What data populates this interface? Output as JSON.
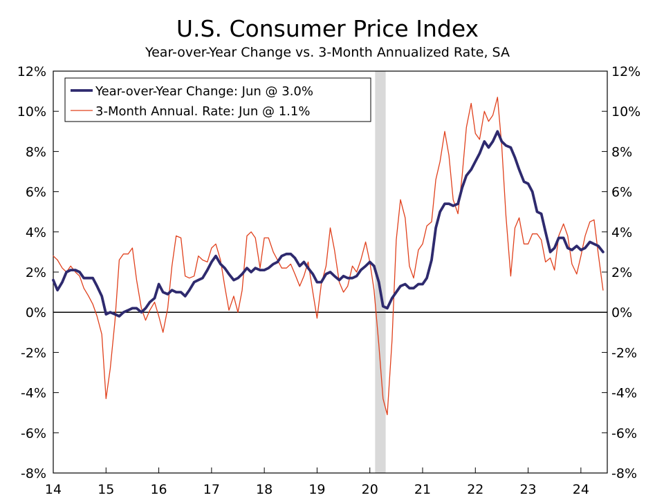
{
  "chart_data": {
    "type": "line",
    "title": "U.S. Consumer Price Index",
    "subtitle": "Year-over-Year Change vs. 3-Month Annualized Rate, SA",
    "xlabel": "",
    "ylabel": "",
    "x_tick_labels": [
      "14",
      "15",
      "16",
      "17",
      "18",
      "19",
      "20",
      "21",
      "22",
      "23",
      "24"
    ],
    "y_tick_labels": [
      "12%",
      "10%",
      "8%",
      "6%",
      "4%",
      "2%",
      "0%",
      "-2%",
      "-4%",
      "-6%",
      "-8%"
    ],
    "y_ticks": [
      12,
      10,
      8,
      6,
      4,
      2,
      0,
      -2,
      -4,
      -6,
      -8
    ],
    "ylim": [
      -8,
      12
    ],
    "xlim": [
      2014.0,
      2024.5
    ],
    "grid": false,
    "zero_line": true,
    "legend_position": "top-left",
    "shaded_periods": [
      {
        "start": 2020.1,
        "end": 2020.3,
        "color": "#d9d9d9"
      }
    ],
    "series": [
      {
        "name": "Year-over-Year Change: Jun @ 3.0%",
        "color": "#2e2a6e",
        "style": "thick",
        "points": [
          [
            2014.0,
            1.6
          ],
          [
            2014.08,
            1.1
          ],
          [
            2014.17,
            1.5
          ],
          [
            2014.25,
            2.0
          ],
          [
            2014.33,
            2.1
          ],
          [
            2014.42,
            2.1
          ],
          [
            2014.5,
            2.0
          ],
          [
            2014.58,
            1.7
          ],
          [
            2014.67,
            1.7
          ],
          [
            2014.75,
            1.7
          ],
          [
            2014.83,
            1.3
          ],
          [
            2014.92,
            0.8
          ],
          [
            2015.0,
            -0.1
          ],
          [
            2015.08,
            0.0
          ],
          [
            2015.17,
            -0.1
          ],
          [
            2015.25,
            -0.2
          ],
          [
            2015.33,
            0.0
          ],
          [
            2015.42,
            0.1
          ],
          [
            2015.5,
            0.2
          ],
          [
            2015.58,
            0.2
          ],
          [
            2015.67,
            0.0
          ],
          [
            2015.75,
            0.2
          ],
          [
            2015.83,
            0.5
          ],
          [
            2015.92,
            0.7
          ],
          [
            2016.0,
            1.4
          ],
          [
            2016.08,
            1.0
          ],
          [
            2016.17,
            0.9
          ],
          [
            2016.25,
            1.1
          ],
          [
            2016.33,
            1.0
          ],
          [
            2016.42,
            1.0
          ],
          [
            2016.5,
            0.8
          ],
          [
            2016.58,
            1.1
          ],
          [
            2016.67,
            1.5
          ],
          [
            2016.75,
            1.6
          ],
          [
            2016.83,
            1.7
          ],
          [
            2016.92,
            2.1
          ],
          [
            2017.0,
            2.5
          ],
          [
            2017.08,
            2.8
          ],
          [
            2017.17,
            2.4
          ],
          [
            2017.25,
            2.2
          ],
          [
            2017.33,
            1.9
          ],
          [
            2017.42,
            1.6
          ],
          [
            2017.5,
            1.7
          ],
          [
            2017.58,
            1.9
          ],
          [
            2017.67,
            2.2
          ],
          [
            2017.75,
            2.0
          ],
          [
            2017.83,
            2.2
          ],
          [
            2017.92,
            2.1
          ],
          [
            2018.0,
            2.1
          ],
          [
            2018.08,
            2.2
          ],
          [
            2018.17,
            2.4
          ],
          [
            2018.25,
            2.5
          ],
          [
            2018.33,
            2.8
          ],
          [
            2018.42,
            2.9
          ],
          [
            2018.5,
            2.9
          ],
          [
            2018.58,
            2.7
          ],
          [
            2018.67,
            2.3
          ],
          [
            2018.75,
            2.5
          ],
          [
            2018.83,
            2.2
          ],
          [
            2018.92,
            1.9
          ],
          [
            2019.0,
            1.5
          ],
          [
            2019.08,
            1.5
          ],
          [
            2019.17,
            1.9
          ],
          [
            2019.25,
            2.0
          ],
          [
            2019.33,
            1.8
          ],
          [
            2019.42,
            1.6
          ],
          [
            2019.5,
            1.8
          ],
          [
            2019.58,
            1.7
          ],
          [
            2019.67,
            1.7
          ],
          [
            2019.75,
            1.8
          ],
          [
            2019.83,
            2.1
          ],
          [
            2019.92,
            2.3
          ],
          [
            2020.0,
            2.5
          ],
          [
            2020.08,
            2.3
          ],
          [
            2020.17,
            1.5
          ],
          [
            2020.25,
            0.3
          ],
          [
            2020.33,
            0.2
          ],
          [
            2020.42,
            0.7
          ],
          [
            2020.5,
            1.0
          ],
          [
            2020.58,
            1.3
          ],
          [
            2020.67,
            1.4
          ],
          [
            2020.75,
            1.2
          ],
          [
            2020.83,
            1.2
          ],
          [
            2020.92,
            1.4
          ],
          [
            2021.0,
            1.4
          ],
          [
            2021.08,
            1.7
          ],
          [
            2021.17,
            2.6
          ],
          [
            2021.25,
            4.2
          ],
          [
            2021.33,
            5.0
          ],
          [
            2021.42,
            5.4
          ],
          [
            2021.5,
            5.4
          ],
          [
            2021.58,
            5.3
          ],
          [
            2021.67,
            5.4
          ],
          [
            2021.75,
            6.2
          ],
          [
            2021.83,
            6.8
          ],
          [
            2021.92,
            7.1
          ],
          [
            2022.0,
            7.5
          ],
          [
            2022.08,
            7.9
          ],
          [
            2022.17,
            8.5
          ],
          [
            2022.25,
            8.2
          ],
          [
            2022.33,
            8.5
          ],
          [
            2022.42,
            9.0
          ],
          [
            2022.5,
            8.5
          ],
          [
            2022.58,
            8.3
          ],
          [
            2022.67,
            8.2
          ],
          [
            2022.75,
            7.7
          ],
          [
            2022.83,
            7.1
          ],
          [
            2022.92,
            6.5
          ],
          [
            2023.0,
            6.4
          ],
          [
            2023.08,
            6.0
          ],
          [
            2023.17,
            5.0
          ],
          [
            2023.25,
            4.9
          ],
          [
            2023.33,
            4.0
          ],
          [
            2023.42,
            3.0
          ],
          [
            2023.5,
            3.2
          ],
          [
            2023.58,
            3.7
          ],
          [
            2023.67,
            3.7
          ],
          [
            2023.75,
            3.2
          ],
          [
            2023.83,
            3.1
          ],
          [
            2023.92,
            3.3
          ],
          [
            2024.0,
            3.1
          ],
          [
            2024.08,
            3.2
          ],
          [
            2024.17,
            3.5
          ],
          [
            2024.25,
            3.4
          ],
          [
            2024.33,
            3.3
          ],
          [
            2024.42,
            3.0
          ]
        ]
      },
      {
        "name": "3-Month Annual. Rate: Jun @ 1.1%",
        "color": "#e0401c",
        "style": "thin",
        "points": [
          [
            2014.0,
            2.8
          ],
          [
            2014.08,
            2.6
          ],
          [
            2014.17,
            2.2
          ],
          [
            2014.25,
            2.0
          ],
          [
            2014.33,
            2.3
          ],
          [
            2014.42,
            2.0
          ],
          [
            2014.5,
            1.8
          ],
          [
            2014.58,
            1.2
          ],
          [
            2014.67,
            0.8
          ],
          [
            2014.75,
            0.4
          ],
          [
            2014.83,
            -0.2
          ],
          [
            2014.92,
            -1.1
          ],
          [
            2015.0,
            -4.3
          ],
          [
            2015.08,
            -2.8
          ],
          [
            2015.17,
            -0.4
          ],
          [
            2015.25,
            2.6
          ],
          [
            2015.33,
            2.9
          ],
          [
            2015.42,
            2.9
          ],
          [
            2015.5,
            3.2
          ],
          [
            2015.58,
            1.6
          ],
          [
            2015.67,
            0.2
          ],
          [
            2015.75,
            -0.4
          ],
          [
            2015.83,
            0.1
          ],
          [
            2015.92,
            0.5
          ],
          [
            2016.0,
            -0.2
          ],
          [
            2016.08,
            -1.0
          ],
          [
            2016.17,
            0.2
          ],
          [
            2016.25,
            2.3
          ],
          [
            2016.33,
            3.8
          ],
          [
            2016.42,
            3.7
          ],
          [
            2016.5,
            1.8
          ],
          [
            2016.58,
            1.7
          ],
          [
            2016.67,
            1.8
          ],
          [
            2016.75,
            2.8
          ],
          [
            2016.83,
            2.6
          ],
          [
            2016.92,
            2.5
          ],
          [
            2017.0,
            3.2
          ],
          [
            2017.08,
            3.4
          ],
          [
            2017.17,
            2.6
          ],
          [
            2017.25,
            1.3
          ],
          [
            2017.33,
            0.1
          ],
          [
            2017.42,
            0.8
          ],
          [
            2017.5,
            0.0
          ],
          [
            2017.58,
            1.1
          ],
          [
            2017.67,
            3.8
          ],
          [
            2017.75,
            4.0
          ],
          [
            2017.83,
            3.7
          ],
          [
            2017.92,
            2.2
          ],
          [
            2018.0,
            3.7
          ],
          [
            2018.08,
            3.7
          ],
          [
            2018.17,
            3.0
          ],
          [
            2018.25,
            2.6
          ],
          [
            2018.33,
            2.2
          ],
          [
            2018.42,
            2.2
          ],
          [
            2018.5,
            2.4
          ],
          [
            2018.58,
            1.9
          ],
          [
            2018.67,
            1.3
          ],
          [
            2018.75,
            1.8
          ],
          [
            2018.83,
            2.5
          ],
          [
            2018.92,
            1.0
          ],
          [
            2019.0,
            -0.3
          ],
          [
            2019.08,
            1.4
          ],
          [
            2019.17,
            2.3
          ],
          [
            2019.25,
            4.2
          ],
          [
            2019.33,
            3.1
          ],
          [
            2019.42,
            1.5
          ],
          [
            2019.5,
            1.0
          ],
          [
            2019.58,
            1.3
          ],
          [
            2019.67,
            2.3
          ],
          [
            2019.75,
            2.0
          ],
          [
            2019.83,
            2.6
          ],
          [
            2019.92,
            3.5
          ],
          [
            2020.0,
            2.5
          ],
          [
            2020.08,
            1.1
          ],
          [
            2020.17,
            -1.6
          ],
          [
            2020.25,
            -4.3
          ],
          [
            2020.33,
            -5.1
          ],
          [
            2020.42,
            -1.4
          ],
          [
            2020.5,
            3.6
          ],
          [
            2020.58,
            5.6
          ],
          [
            2020.67,
            4.7
          ],
          [
            2020.75,
            2.3
          ],
          [
            2020.83,
            1.7
          ],
          [
            2020.92,
            3.1
          ],
          [
            2021.0,
            3.4
          ],
          [
            2021.08,
            4.3
          ],
          [
            2021.17,
            4.5
          ],
          [
            2021.25,
            6.6
          ],
          [
            2021.33,
            7.5
          ],
          [
            2021.42,
            9.0
          ],
          [
            2021.5,
            7.8
          ],
          [
            2021.58,
            5.6
          ],
          [
            2021.67,
            4.9
          ],
          [
            2021.75,
            6.8
          ],
          [
            2021.83,
            9.2
          ],
          [
            2021.92,
            10.4
          ],
          [
            2022.0,
            8.9
          ],
          [
            2022.08,
            8.6
          ],
          [
            2022.17,
            10.0
          ],
          [
            2022.25,
            9.5
          ],
          [
            2022.33,
            9.8
          ],
          [
            2022.42,
            10.7
          ],
          [
            2022.5,
            8.3
          ],
          [
            2022.58,
            4.8
          ],
          [
            2022.67,
            1.8
          ],
          [
            2022.75,
            4.2
          ],
          [
            2022.83,
            4.7
          ],
          [
            2022.92,
            3.4
          ],
          [
            2023.0,
            3.4
          ],
          [
            2023.08,
            3.9
          ],
          [
            2023.17,
            3.9
          ],
          [
            2023.25,
            3.6
          ],
          [
            2023.33,
            2.5
          ],
          [
            2023.42,
            2.7
          ],
          [
            2023.5,
            2.1
          ],
          [
            2023.58,
            3.8
          ],
          [
            2023.67,
            4.4
          ],
          [
            2023.75,
            3.8
          ],
          [
            2023.83,
            2.4
          ],
          [
            2023.92,
            1.9
          ],
          [
            2024.0,
            2.8
          ],
          [
            2024.08,
            3.8
          ],
          [
            2024.17,
            4.5
          ],
          [
            2024.25,
            4.6
          ],
          [
            2024.33,
            2.9
          ],
          [
            2024.42,
            1.1
          ]
        ]
      }
    ]
  }
}
